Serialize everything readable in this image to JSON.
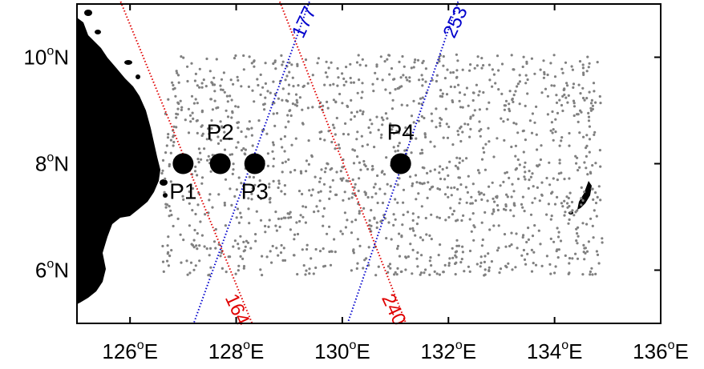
{
  "map": {
    "lon_range": [
      125,
      136
    ],
    "lat_range": [
      5,
      11
    ],
    "x_ticks": [
      {
        "lon": 126,
        "deg": "126",
        "sup": "o",
        "hemi": "E"
      },
      {
        "lon": 128,
        "deg": "128",
        "sup": "o",
        "hemi": "E"
      },
      {
        "lon": 130,
        "deg": "130",
        "sup": "o",
        "hemi": "E"
      },
      {
        "lon": 132,
        "deg": "132",
        "sup": "o",
        "hemi": "E"
      },
      {
        "lon": 134,
        "deg": "134",
        "sup": "o",
        "hemi": "E"
      },
      {
        "lon": 136,
        "deg": "136",
        "sup": "o",
        "hemi": "E"
      }
    ],
    "y_ticks": [
      {
        "lat": 10,
        "deg": "10",
        "sup": "o",
        "hemi": "N"
      },
      {
        "lat": 8,
        "deg": "8",
        "sup": "o",
        "hemi": "N"
      },
      {
        "lat": 6,
        "deg": "6",
        "sup": "o",
        "hemi": "N"
      }
    ],
    "stations": [
      {
        "name": "P1",
        "lon": 127.0,
        "lat": 8.0,
        "label_pos": "below"
      },
      {
        "name": "P2",
        "lon": 127.7,
        "lat": 8.0,
        "label_pos": "above"
      },
      {
        "name": "P3",
        "lon": 128.35,
        "lat": 8.0,
        "label_pos": "below"
      },
      {
        "name": "P4",
        "lon": 131.1,
        "lat": 8.0,
        "label_pos": "above"
      }
    ],
    "tracks": [
      {
        "id": "164",
        "color": "#e00000",
        "start": [
          125.8,
          11.1
        ],
        "end": [
          128.3,
          5.0
        ],
        "label_lon": 128.0,
        "label_lat": 5.25,
        "label_rot": 65
      },
      {
        "id": "240",
        "color": "#e00000",
        "start": [
          128.8,
          11.1
        ],
        "end": [
          131.2,
          5.0
        ],
        "label_lon": 130.95,
        "label_lat": 5.25,
        "label_rot": 65
      },
      {
        "id": "177",
        "color": "#0000cc",
        "start": [
          129.4,
          11.1
        ],
        "end": [
          127.2,
          5.0
        ],
        "label_lon": 129.3,
        "label_lat": 10.65,
        "label_rot": -65
      },
      {
        "id": "253",
        "color": "#0000cc",
        "start": [
          132.2,
          11.1
        ],
        "end": [
          130.1,
          5.0
        ],
        "label_lon": 132.15,
        "label_lat": 10.65,
        "label_rot": -65
      }
    ],
    "observation_color": "#808080",
    "landmass_color": "#000000"
  }
}
